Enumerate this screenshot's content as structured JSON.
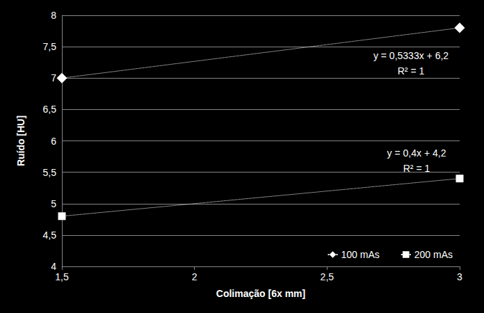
{
  "chart_data": {
    "type": "line",
    "x_label": "Colimação [6x mm]",
    "y_label": "Ruído [HU]",
    "x": [
      1.5,
      3
    ],
    "series": [
      {
        "name": "100 mAs",
        "color": "#ffffff",
        "marker": "diamond",
        "line_style": "dotted",
        "values": [
          7,
          7.8
        ]
      },
      {
        "name": "200 mAs",
        "color": "#ffffff",
        "marker": "square",
        "line_style": "dotted",
        "values": [
          4.8,
          5.4
        ]
      }
    ],
    "annotations": [
      {
        "series": "100 mAs",
        "text": [
          "y = 0,5333x + 6,2",
          "R² = 1"
        ]
      },
      {
        "series": "200 mAs",
        "text": [
          "y = 0,4x + 4,2",
          "R² = 1"
        ]
      }
    ],
    "xlim": [
      1.5,
      3
    ],
    "xticks": [
      {
        "value": 1.5,
        "label": "1,5"
      },
      2,
      {
        "value": 2.5,
        "label": "2,5"
      },
      3
    ],
    "ylim": [
      4,
      8
    ],
    "yticks": [
      4,
      {
        "value": 4.5,
        "label": "4,5"
      },
      5,
      {
        "value": 5.5,
        "label": "5,5"
      },
      6,
      {
        "value": 6.5,
        "label": "6,5"
      },
      7,
      {
        "value": 7.5,
        "label": "7,5"
      },
      8
    ],
    "grid": true,
    "legend": "lower right"
  }
}
